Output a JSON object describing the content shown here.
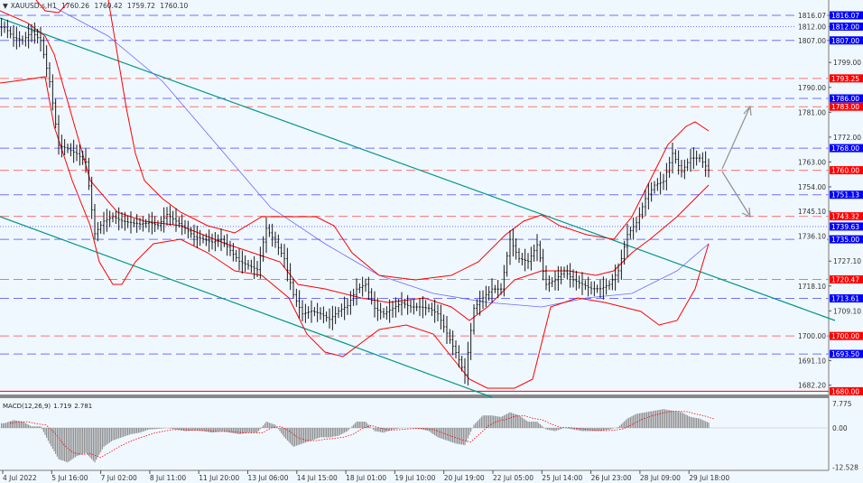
{
  "header": {
    "symbol": "XAUUSD.s,H1",
    "open": "1760.26",
    "high": "1760.42",
    "low": "1759.72",
    "close": "1760.10"
  },
  "colors": {
    "background": "#f0f8ff",
    "bars": "#000000",
    "bollinger": "#ff0000",
    "moving_average": "#6a6aff",
    "trend_channel": "#009688",
    "support_label": "#0000ff",
    "resistance_label": "#ff0000",
    "macd_histogram": "#808080",
    "macd_signal": "#ff0000",
    "projection_arrows": "#909090"
  },
  "chart_data": [
    {
      "type": "ohlc",
      "title": "XAUUSD.s,H1",
      "ylim": [
        1680,
        1818
      ],
      "y_ticks": [
        "1816.07",
        "1812.00",
        "1807.00",
        "1799.00",
        "1790.00",
        "1781.00",
        "1772.00",
        "1763.00",
        "1754.00",
        "1745.10",
        "1736.10",
        "1727.10",
        "1718.10",
        "1709.10",
        "1700.00",
        "1691.10",
        "1682.20"
      ],
      "x_ticks": [
        "4 Jul 2022",
        "5 Jul 16:00",
        "7 Jul 02:00",
        "8 Jul 11:00",
        "11 Jul 20:00",
        "13 Jul 06:00",
        "14 Jul 15:00",
        "18 Jul 01:00",
        "19 Jul 10:00",
        "20 Jul 19:00",
        "22 Jul 05:00",
        "25 Jul 14:00",
        "26 Jul 23:00",
        "28 Jul 09:00",
        "29 Jul 18:00"
      ],
      "close_series": [
        1811.8,
        1808,
        1806.9,
        1810.2,
        1806.9,
        1792,
        1769,
        1767.7,
        1766,
        1763,
        1737,
        1741.6,
        1743.2,
        1741.6,
        1741,
        1740.5,
        1741,
        1740,
        1744,
        1741.6,
        1739,
        1736,
        1735,
        1734,
        1735,
        1731,
        1727,
        1725.5,
        1724,
        1739,
        1734,
        1728,
        1715,
        1708,
        1709,
        1708,
        1706,
        1709,
        1711,
        1717,
        1718.7,
        1710,
        1708,
        1710,
        1712,
        1710.5,
        1710.5,
        1710,
        1708,
        1701,
        1694,
        1686,
        1710,
        1713.8,
        1717,
        1717,
        1735,
        1728,
        1727,
        1733,
        1718.7,
        1720.3,
        1723.6,
        1720.3,
        1718.7,
        1717.1,
        1717.1,
        1718.7,
        1723.6,
        1736.7,
        1741,
        1749.7,
        1754.6,
        1756,
        1766.1,
        1759.5,
        1764.4,
        1764.4,
        1760.1
      ],
      "levels": [
        {
          "price": "1816.07",
          "kind": "support",
          "style": "dashed"
        },
        {
          "price": "1812.00",
          "kind": "support",
          "style": "dotted"
        },
        {
          "price": "1807.00",
          "kind": "support",
          "style": "dashed"
        },
        {
          "price": "1793.25",
          "kind": "resistance",
          "style": "dashed"
        },
        {
          "price": "1786.00",
          "kind": "support",
          "style": "dashed"
        },
        {
          "price": "1783.00",
          "kind": "resistance",
          "style": "dashed"
        },
        {
          "price": "1768.00",
          "kind": "support",
          "style": "dashed"
        },
        {
          "price": "1760.00",
          "kind": "resistance",
          "style": "dashed"
        },
        {
          "price": "1751.13",
          "kind": "support",
          "style": "dashed"
        },
        {
          "price": "1743.32",
          "kind": "resistance",
          "style": "dashed"
        },
        {
          "price": "1739.63",
          "kind": "support",
          "style": "dotted"
        },
        {
          "price": "1735.00",
          "kind": "support",
          "style": "dashed"
        },
        {
          "price": "1720.47",
          "kind": "resistance",
          "style": "dashed"
        },
        {
          "price": "1713.61",
          "kind": "support",
          "style": "dashed"
        },
        {
          "price": "1700.00",
          "kind": "resistance",
          "style": "dashed"
        },
        {
          "price": "1693.50",
          "kind": "support",
          "style": "dashed"
        },
        {
          "price": "1680.00",
          "kind": "resistance",
          "style": "solid"
        }
      ]
    },
    {
      "type": "bar",
      "title": "MACD(12,26,9)",
      "macd_value": "1.719",
      "signal_value": "2.781",
      "ylim": [
        -12.528,
        7.775
      ],
      "y_ticks": [
        "7.775",
        "0.00",
        "-12.528"
      ],
      "histogram": [
        1.5,
        2.5,
        2,
        0.5,
        0.5,
        -5,
        -10,
        -11,
        -9,
        -8,
        -11,
        -6,
        -4,
        -3,
        -2,
        -1.5,
        -0.5,
        -0.3,
        0,
        -0.5,
        -1,
        -0.8,
        -1,
        -1.5,
        -1,
        -1.5,
        -2,
        -1.5,
        -1.5,
        2,
        1,
        -3,
        -6,
        -5,
        -4,
        -3,
        -3,
        -2.5,
        -1,
        2,
        2,
        -1,
        -1.5,
        -0.5,
        0,
        0,
        -0.3,
        -1,
        -3,
        -4,
        -5,
        -5.5,
        1,
        4,
        4,
        3.5,
        5,
        4,
        2,
        2,
        -0.5,
        -1,
        0,
        -0.5,
        -1,
        -1,
        -1,
        -0.5,
        0.3,
        3,
        4.5,
        5,
        5.5,
        6,
        5.5,
        5,
        3.5,
        3,
        1.7
      ]
    }
  ]
}
